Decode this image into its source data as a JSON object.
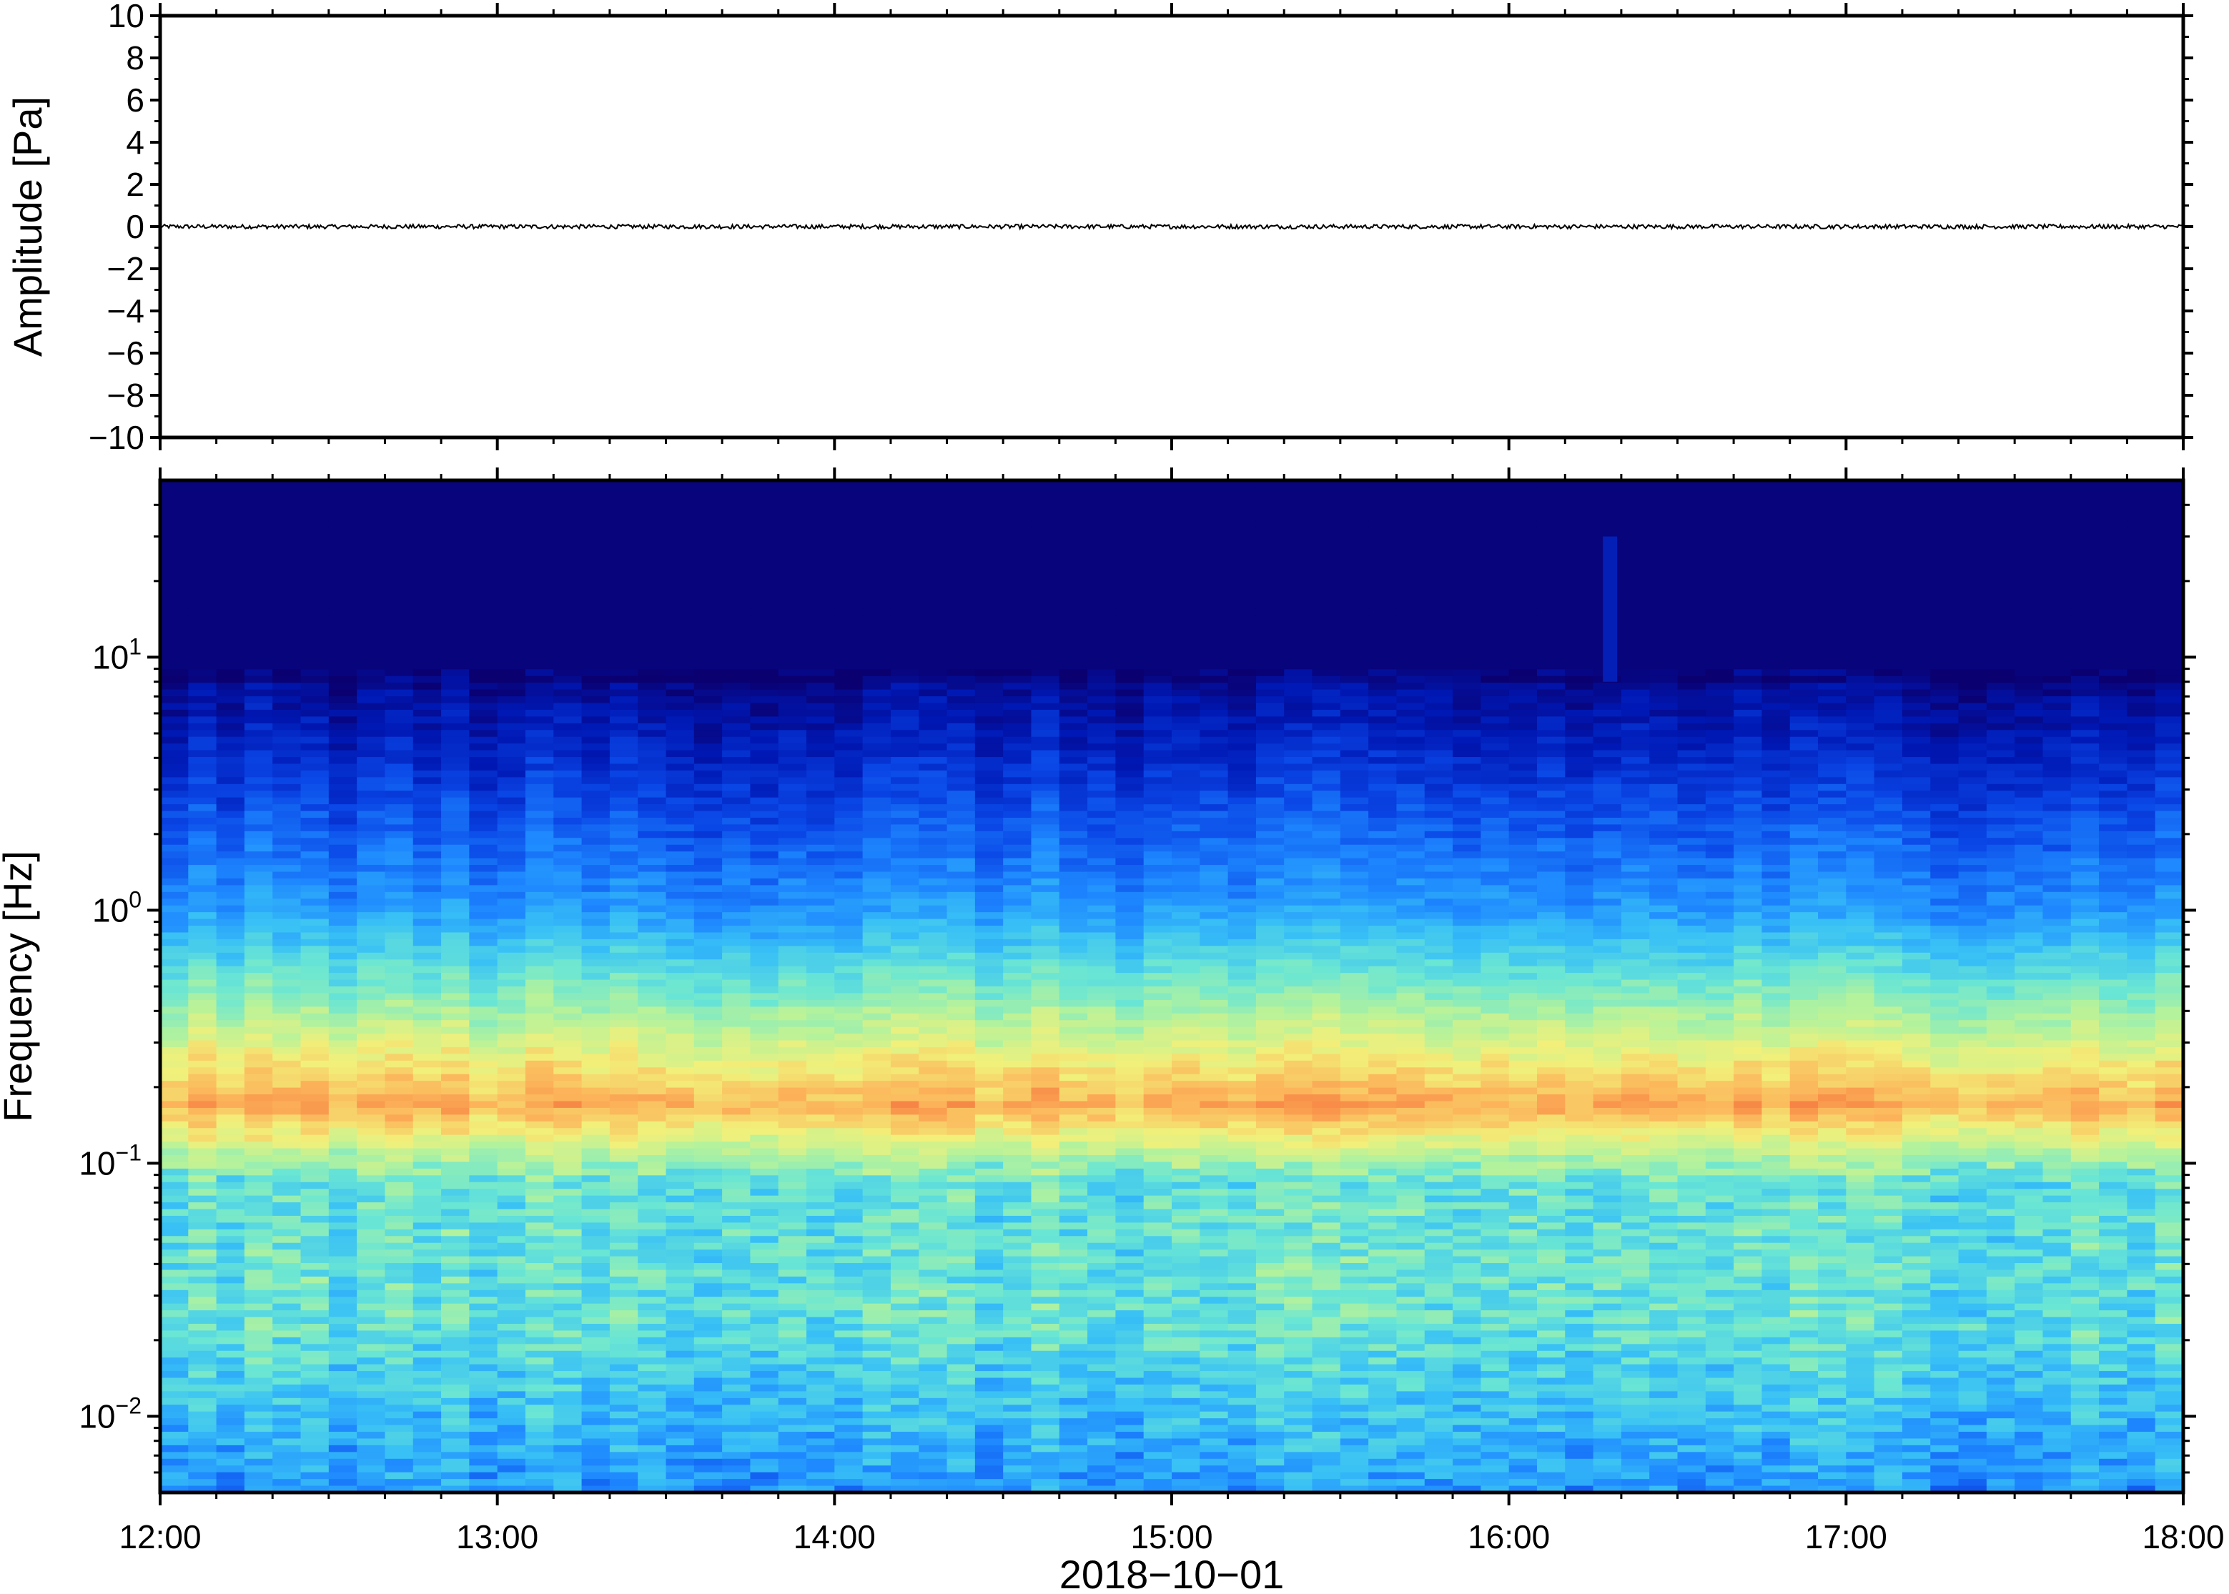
{
  "chart_data": [
    {
      "type": "line",
      "panel": "waveform",
      "ylabel": "Amplitude [Pa]",
      "ylim": [
        -10,
        10
      ],
      "yticks": [
        10,
        8,
        6,
        4,
        2,
        0,
        -2,
        -4,
        -6,
        -8,
        -10
      ],
      "ytick_labels": [
        "10",
        "8",
        "6",
        "4",
        "2",
        "0",
        "−2",
        "−4",
        "−6",
        "−8",
        "−10"
      ],
      "xlim": [
        "2018-10-01 12:00",
        "2018-10-01 18:00"
      ],
      "series": [
        {
          "trace": "flat noise around 0 Pa",
          "approx_peak_to_peak_pa": 0.2,
          "mean": 0,
          "color": "#000000"
        }
      ]
    },
    {
      "type": "heatmap",
      "panel": "spectrogram",
      "ylabel": "Frequency [Hz]",
      "yscale": "log",
      "ylim": [
        0.005,
        50
      ],
      "yticks": [
        {
          "value": 0.01,
          "base": "10",
          "exp": "−2"
        },
        {
          "value": 0.1,
          "base": "10",
          "exp": "−1"
        },
        {
          "value": 1,
          "base": "10",
          "exp": "0"
        },
        {
          "value": 10,
          "base": "10",
          "exp": "1"
        }
      ],
      "xlim": [
        "2018-10-01 12:00",
        "2018-10-01 18:00"
      ],
      "xticks": [
        "12:00",
        "13:00",
        "14:00",
        "15:00",
        "16:00",
        "17:00",
        "18:00"
      ],
      "xlabel": "2018−10−01",
      "colormap": [
        "#0a0070",
        "#0018b4",
        "#0a46e6",
        "#1e88ff",
        "#38c0f6",
        "#6ae6d4",
        "#b4f29c",
        "#f2f07a",
        "#fcb45a",
        "#f46c3a"
      ],
      "features": {
        "microbarom_peak_hz": 0.17,
        "high_freq_cutoff_hz": 8,
        "transient_time": "16:18",
        "transient_max_hz": 30
      }
    }
  ]
}
